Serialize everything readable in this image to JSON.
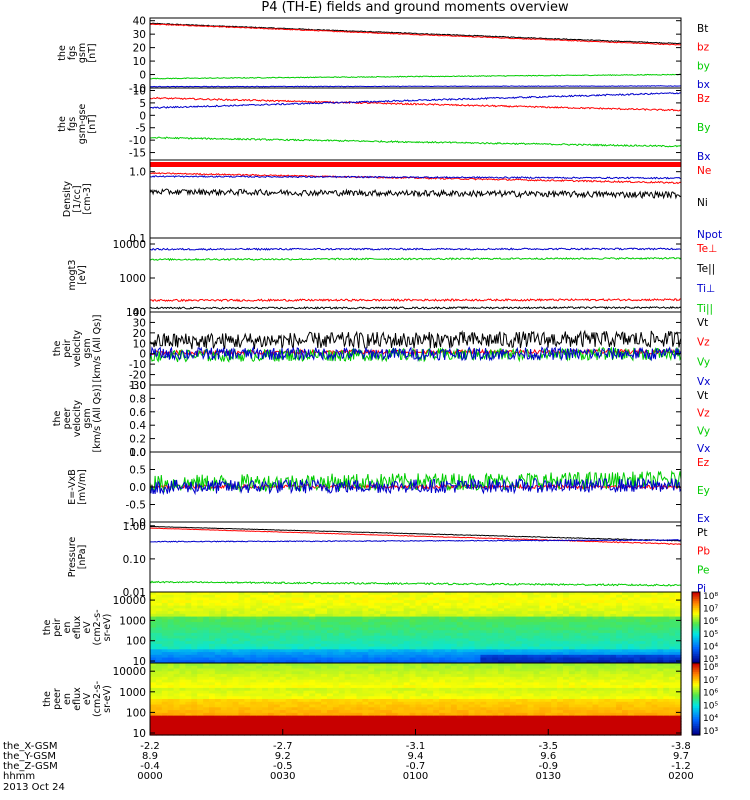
{
  "title": "P4 (TH-E) fields and ground moments overview",
  "chart_data": {
    "type": "line",
    "x_axis": {
      "label": "hhmm",
      "date_label": "2013 Oct 24",
      "rows": [
        {
          "label": "the_X-GSM",
          "values": [
            "-2.2",
            "-2.7",
            "-3.1",
            "-3.5",
            "-3.8"
          ]
        },
        {
          "label": "the_Y-GSM",
          "values": [
            "8.9",
            "9.2",
            "9.4",
            "9.6",
            "9.7"
          ]
        },
        {
          "label": "the_Z-GSM",
          "values": [
            "-0.4",
            "-0.5",
            "-0.7",
            "-0.9",
            "-1.2"
          ]
        }
      ],
      "ticks": [
        "0000",
        "0030",
        "0100",
        "0130",
        "0200"
      ]
    },
    "panels": [
      {
        "id": "fgs-gsm",
        "ylabel": [
          "the",
          "fgs",
          "gsm",
          "[nT]"
        ],
        "ylim": [
          -10,
          42
        ],
        "yscale": "linear",
        "yticks": [
          "40",
          "30",
          "20",
          "10",
          "0",
          "-10"
        ],
        "series": [
          {
            "name": "Bt",
            "color": "#000000",
            "start": 38,
            "end": 23,
            "noise": 0.3
          },
          {
            "name": "bz",
            "color": "#ff0000",
            "start": 37.5,
            "end": 22,
            "noise": 0.3
          },
          {
            "name": "by",
            "color": "#00cc00",
            "start": -3,
            "end": 0,
            "noise": 0.3
          },
          {
            "name": "bx",
            "color": "#0000cc",
            "start": -9,
            "end": -8.5,
            "noise": 0.2
          }
        ]
      },
      {
        "id": "fgs-gse",
        "ylabel": [
          "the",
          "fgs",
          "gsm-gse",
          "[nT]"
        ],
        "ylim": [
          -18,
          11
        ],
        "yscale": "linear",
        "yticks": [
          "10",
          "5",
          "0",
          "-5",
          "-10",
          "-15"
        ],
        "series": [
          {
            "name": "Bz",
            "color": "#ff0000",
            "start": 7,
            "end": 2,
            "noise": 0.3
          },
          {
            "name": "By",
            "color": "#00cc00",
            "start": -9,
            "end": -12.5,
            "noise": 0.3
          },
          {
            "name": "Bx",
            "color": "#0000cc",
            "start": 3,
            "end": 9,
            "noise": 0.3
          }
        ]
      },
      {
        "id": "density",
        "ylabel": [
          "Density",
          "[1/cc]",
          "[cm-3]"
        ],
        "ylim": [
          0.1,
          1.5
        ],
        "yscale": "log",
        "yticks": [
          "1.0",
          "0.1"
        ],
        "series": [
          {
            "name": "Ne",
            "color": "#ff0000",
            "start": 0.95,
            "end": 0.68,
            "noise": 0.02
          },
          {
            "name": "Ni",
            "color": "#000000",
            "start": 0.5,
            "end": 0.45,
            "noise": 0.05
          },
          {
            "name": "Npot",
            "color": "#0000cc",
            "start": 0.85,
            "end": 0.8,
            "noise": 0.02
          }
        ]
      },
      {
        "id": "moments-temp",
        "ylabel": [
          "mogt3",
          "[eV]"
        ],
        "ylim": [
          100,
          15000
        ],
        "yscale": "log",
        "yticks": [
          "10000",
          "1000",
          "100"
        ],
        "series": [
          {
            "name": "Te⊥",
            "color": "#ff0000",
            "start": 220,
            "end": 230,
            "noise": 15
          },
          {
            "name": "Te||",
            "color": "#000000",
            "start": 130,
            "end": 135,
            "noise": 8
          },
          {
            "name": "Ti⊥",
            "color": "#0000cc",
            "start": 7000,
            "end": 7200,
            "noise": 400
          },
          {
            "name": "Ti||",
            "color": "#00cc00",
            "start": 3500,
            "end": 3800,
            "noise": 200
          }
        ]
      },
      {
        "id": "peir-velocity",
        "ylabel": [
          "the",
          "peir",
          "velocity",
          "gsm",
          "[km/s (All Qs)]"
        ],
        "ylim": [
          -30,
          40
        ],
        "yscale": "linear",
        "yticks": [
          "40",
          "30",
          "20",
          "10",
          "0",
          "-10",
          "-20",
          "-30"
        ],
        "series": [
          {
            "name": "Vt",
            "color": "#000000",
            "start": 12,
            "end": 14,
            "noise": 8
          },
          {
            "name": "Vz",
            "color": "#ff0000",
            "start": 1,
            "end": 2,
            "noise": 2
          },
          {
            "name": "Vy",
            "color": "#00cc00",
            "start": -2,
            "end": 0,
            "noise": 6
          },
          {
            "name": "Vx",
            "color": "#0000cc",
            "start": 0,
            "end": 0,
            "noise": 6
          }
        ]
      },
      {
        "id": "peer-velocity",
        "ylabel": [
          "the",
          "peer",
          "velocity",
          "gsm",
          "[km/s (All Qs)]"
        ],
        "ylim": [
          0,
          1
        ],
        "yscale": "linear",
        "yticks": [
          "1.0",
          "0.8",
          "0.6",
          "0.4",
          "0.2",
          "0.0"
        ],
        "series": [
          {
            "name": "Vt",
            "color": "#000000"
          },
          {
            "name": "Vz",
            "color": "#ff0000"
          },
          {
            "name": "Vy",
            "color": "#00cc00"
          },
          {
            "name": "Vx",
            "color": "#0000cc"
          }
        ]
      },
      {
        "id": "e-field",
        "ylabel": [
          "E=-VxB",
          "[mV/m]"
        ],
        "ylim": [
          -1,
          1
        ],
        "yscale": "linear",
        "yticks": [
          "1.0",
          "0.5",
          "0.0",
          "-0.5",
          "-1.0"
        ],
        "series": [
          {
            "name": "Ez",
            "color": "#ff0000",
            "start": 0.02,
            "end": 0.0,
            "noise": 0.05
          },
          {
            "name": "Ey",
            "color": "#00cc00",
            "start": 0.1,
            "end": 0.2,
            "noise": 0.25
          },
          {
            "name": "Ex",
            "color": "#0000cc",
            "start": 0.0,
            "end": 0.05,
            "noise": 0.2
          }
        ]
      },
      {
        "id": "pressure",
        "ylabel": [
          "Pressure",
          "[nPa]"
        ],
        "ylim": [
          0.01,
          1.3
        ],
        "yscale": "log",
        "yticks": [
          "1.00",
          "0.10",
          "0.01"
        ],
        "series": [
          {
            "name": "Pt",
            "color": "#000000",
            "start": 0.95,
            "end": 0.35,
            "noise": 0.01
          },
          {
            "name": "Pb",
            "color": "#ff0000",
            "start": 0.85,
            "end": 0.28,
            "noise": 0.01
          },
          {
            "name": "Pe",
            "color": "#00cc00",
            "start": 0.02,
            "end": 0.016,
            "noise": 0.001
          },
          {
            "name": "Pi",
            "color": "#0000cc",
            "start": 0.33,
            "end": 0.37,
            "noise": 0.01
          }
        ]
      },
      {
        "id": "peir-spectrogram",
        "type": "heatmap",
        "ylabel": [
          "the",
          "peir",
          "en",
          "eflux",
          "eV",
          "(cm2-s-",
          "sr-eV)"
        ],
        "ylim": [
          8,
          25000
        ],
        "yscale": "log",
        "yticks": [
          "10000",
          "1000",
          "100",
          "10"
        ],
        "colorbar_ticks": [
          "10⁸",
          "10⁷",
          "10⁶",
          "10⁵",
          "10⁴",
          "10³"
        ]
      },
      {
        "id": "peer-spectrogram",
        "type": "heatmap",
        "ylabel": [
          "the",
          "peer",
          "en",
          "eflux",
          "eV",
          "(cm2-s-",
          "sr-eV)"
        ],
        "ylim": [
          8,
          25000
        ],
        "yscale": "log",
        "yticks": [
          "10000",
          "1000",
          "100",
          "10"
        ],
        "colorbar_ticks": [
          "10⁸",
          "10⁷",
          "10⁶",
          "10⁵",
          "10⁴",
          "10³"
        ]
      }
    ]
  }
}
